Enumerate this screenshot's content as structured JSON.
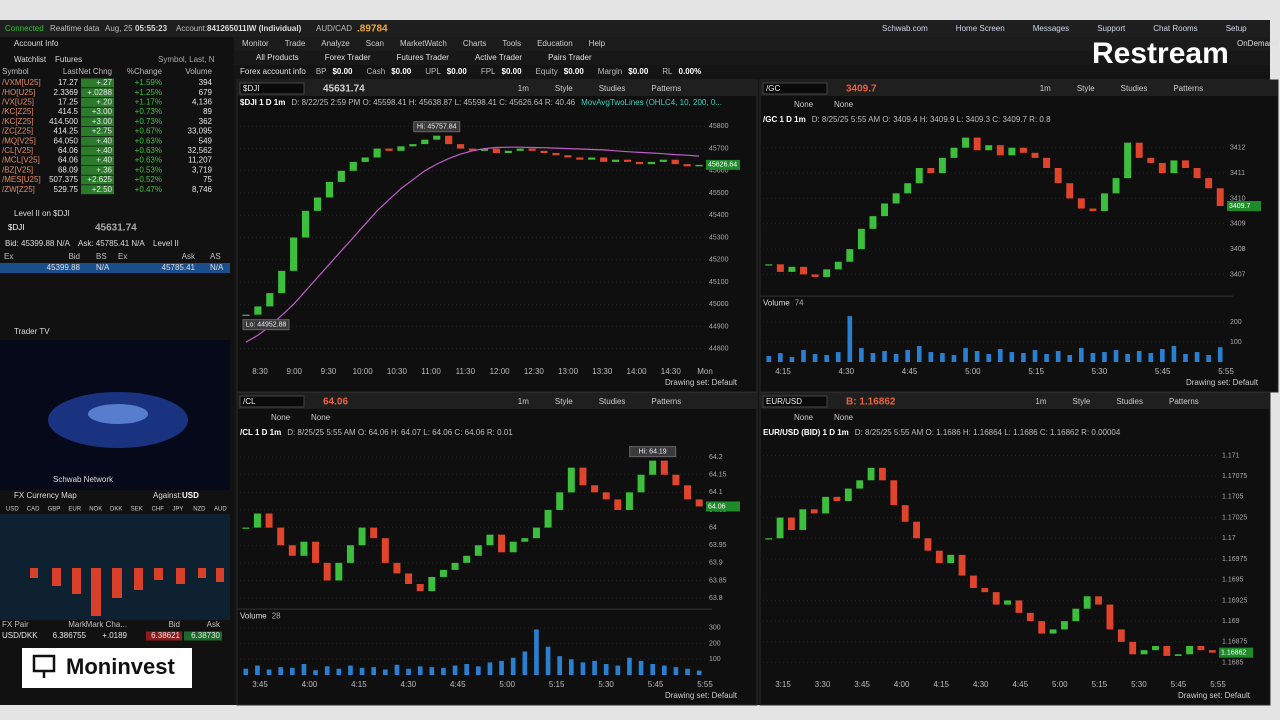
{
  "top_bar": {
    "status": "Connected",
    "data_mode": "Realtime data",
    "date": "Aug, 25",
    "time": "05:55:23",
    "account_label": "Account:",
    "account": "841265011IW (Individual)",
    "symbol": "AUD/CAD",
    "price": ".89784"
  },
  "menu": [
    "Monitor",
    "Trade",
    "Analyze",
    "Scan",
    "MarketWatch",
    "Charts",
    "Tools",
    "Education",
    "Help"
  ],
  "links": [
    "Schwab.com",
    "Home Screen",
    "Messages",
    "Support",
    "Chat Rooms",
    "Setup"
  ],
  "brand": "Restream",
  "on_demand": "OnDemand",
  "tabs": [
    "All Products",
    "Forex Trader",
    "Futures Trader",
    "Active Trader",
    "Pairs Trader"
  ],
  "forex_info": {
    "title": "Forex account info",
    "fields": [
      {
        "label": "BP",
        "value": "$0.00"
      },
      {
        "label": "Cash",
        "value": "$0.00"
      },
      {
        "label": "UPL",
        "value": "$0.00"
      },
      {
        "label": "FPL",
        "value": "$0.00"
      },
      {
        "label": "Equity",
        "value": "$0.00"
      },
      {
        "label": "Margin",
        "value": "$0.00"
      },
      {
        "label": "RL",
        "value": "0.00%"
      }
    ]
  },
  "left_panel": {
    "account_info": "Account Info",
    "watchlist": {
      "title": "Watchlist",
      "list": "Futures",
      "search": "Symbol, Last, N",
      "headers": [
        "Symbol",
        "Last",
        "Net Chng",
        "%Change",
        "Volume"
      ],
      "rows": [
        [
          "/VXM[U25]",
          "17.27",
          "+.27",
          "+1.59%",
          "394"
        ],
        [
          "/HO[U25]",
          "2.3369",
          "+.0288",
          "+1.25%",
          "679"
        ],
        [
          "/VX[U25]",
          "17.25",
          "+.20",
          "+1.17%",
          "4,136"
        ],
        [
          "/KC[Z25]",
          "414.5",
          "+3.00",
          "+0.73%",
          "89"
        ],
        [
          "/KC[Z25]",
          "414.500",
          "+3.00",
          "+0.73%",
          "362"
        ],
        [
          "/ZC[Z25]",
          "414.25",
          "+2.75",
          "+0.67%",
          "33,095"
        ],
        [
          "/MQ[V25]",
          "64.050",
          "+.40",
          "+0.63%",
          "549"
        ],
        [
          "/CL[V25]",
          "64.06",
          "+.40",
          "+0.63%",
          "32,562"
        ],
        [
          "/MCL[V25]",
          "64.06",
          "+.40",
          "+0.63%",
          "11,207"
        ],
        [
          "/BZ[V25]",
          "68.09",
          "+.36",
          "+0.53%",
          "3,719"
        ],
        [
          "/MES[U25]",
          "507.375",
          "+2.625",
          "+0.52%",
          "75"
        ],
        [
          "/ZW[Z25]",
          "529.75",
          "+2.50",
          "+0.47%",
          "8,746"
        ]
      ]
    },
    "level2": {
      "title": "Level II on $DJI",
      "symbol": "$DJI",
      "price": "45631.74",
      "bid": "Bid: 45399.88 N/A",
      "ask": "Ask: 45785.41 N/A",
      "mode": "Level II",
      "headers": [
        "Ex",
        "Bid",
        "BS",
        "Ex",
        "Ask",
        "AS"
      ],
      "row": [
        "45399.88",
        "N/A",
        "45785.41",
        "N/A"
      ]
    },
    "trader_tv": {
      "title": "Trader TV",
      "channel": "Schwab Network"
    },
    "fx_map": {
      "title": "FX Currency Map",
      "against_label": "Against:",
      "against": "USD",
      "codes": [
        "USD",
        "CAD",
        "GBP",
        "EUR",
        "NOK",
        "DKK",
        "SEK",
        "CHF",
        "JPY",
        "NZD",
        "AUD"
      ],
      "headers": [
        "FX Pair",
        "Mark",
        "Mark Cha...",
        "Bid",
        "Ask"
      ],
      "rows": [
        [
          "USD/DKK",
          "6.386755",
          "+.0189",
          "6.38621",
          "6.38730"
        ]
      ]
    }
  },
  "chart_toolbar": {
    "interval": "1m",
    "style": "Style",
    "studies": "Studies",
    "patterns": "Patterns",
    "none": "None",
    "drawing_set": "Drawing set: Default"
  },
  "charts": [
    {
      "type": "line",
      "symbol": "$DJI",
      "price": "45631.74",
      "price_color": "#cfcfcf",
      "link_row": false,
      "title": "$DJI 1 D 1m",
      "info": "D: 8/22/25 2:59 PM  O: 45598.41  H: 45638.87  L: 45598.41  C: 45626.64  R: 40.46",
      "study": "MovAvgTwoLines (OHLC4, 10, 200, 0...",
      "ylim": [
        44740,
        45860
      ],
      "yticks": [
        44800,
        44900,
        45000,
        45100,
        45200,
        45300,
        45400,
        45500,
        45600,
        45700,
        45800
      ],
      "xticks": [
        "8:30",
        "9:00",
        "9:30",
        "10:00",
        "10:30",
        "11:00",
        "11:30",
        "12:00",
        "12:30",
        "13:00",
        "13:30",
        "14:00",
        "14:30",
        "Mon"
      ],
      "series": [
        {
          "style": "candle",
          "values": [
            44952.88,
            44990,
            45050,
            45150,
            45300,
            45420,
            45480,
            45550,
            45600,
            45640,
            45660,
            45700,
            45690,
            45710,
            45720,
            45740,
            45757.84,
            45720,
            45700,
            45690,
            45700,
            45680,
            45690,
            45700,
            45690,
            45680,
            45670,
            45660,
            45650,
            45660,
            45640,
            45650,
            45640,
            45630,
            45640,
            45650,
            45630,
            45620,
            45626.64
          ]
        },
        {
          "style": "line",
          "color": "#c05cc8",
          "values": [
            44830,
            44860,
            44900,
            44950,
            45000,
            45060,
            45120,
            45180,
            45240,
            45300,
            45360,
            45420,
            45470,
            45520,
            45560,
            45600,
            45630,
            45655,
            45675,
            45690,
            45700,
            45705,
            45706,
            45706,
            45705,
            45704,
            45702,
            45700,
            45698,
            45696,
            45694,
            45690,
            45686,
            45683,
            45680,
            45677,
            45673,
            45670,
            45666
          ]
        }
      ],
      "annotations": [
        {
          "label": "Hi: 45757.84",
          "value": 45757.84
        },
        {
          "label": "Lo: 44952.88",
          "value": 44952.88
        }
      ],
      "last": 45626.64
    },
    {
      "type": "line",
      "symbol": "/GC",
      "price": "3409.7",
      "price_color": "#e8603c",
      "link_row": true,
      "title": "/GC 1 D 1m",
      "info": "D: 8/25/25 5:55 AM  O: 3409.4  H: 3409.9  L: 3409.3  C: 3409.7  R: 0.8",
      "ylim": [
        3406.3,
        3412.7
      ],
      "yticks": [
        3407,
        3408,
        3409,
        3410,
        3411,
        3412
      ],
      "xticks": [
        "4:15",
        "4:30",
        "4:45",
        "5:00",
        "5:15",
        "5:30",
        "5:45",
        "5:55"
      ],
      "series": [
        {
          "style": "candle",
          "values": [
            3407.4,
            3407.1,
            3407.3,
            3407.0,
            3406.9,
            3407.2,
            3407.5,
            3408.0,
            3408.8,
            3409.3,
            3409.8,
            3410.2,
            3410.6,
            3411.2,
            3411.0,
            3411.6,
            3412.0,
            3412.4,
            3411.9,
            3412.1,
            3411.7,
            3412.0,
            3411.8,
            3411.6,
            3411.2,
            3410.6,
            3410.0,
            3409.6,
            3409.5,
            3410.2,
            3410.8,
            3412.2,
            3411.6,
            3411.4,
            3411.0,
            3411.5,
            3411.2,
            3410.8,
            3410.4,
            3409.7
          ]
        }
      ],
      "annotations": [],
      "last": 3409.7,
      "volume": {
        "label": "Volume",
        "count": "74",
        "ylim": [
          0,
          260
        ],
        "yticks": [
          100,
          200
        ],
        "values": [
          30,
          45,
          25,
          60,
          40,
          35,
          50,
          230,
          70,
          45,
          55,
          40,
          60,
          80,
          50,
          45,
          35,
          70,
          55,
          40,
          65,
          50,
          45,
          60,
          40,
          55,
          35,
          70,
          45,
          50,
          60,
          40,
          55,
          45,
          65,
          80,
          40,
          50,
          35,
          74
        ]
      }
    },
    {
      "type": "line",
      "symbol": "/CL",
      "price": "64.06",
      "price_color": "#e8603c",
      "link_row": true,
      "title": "/CL 1 D 1m",
      "info": "D: 8/25/25 5:55 AM  O: 64.06  H: 64.07  L: 64.06  C: 64.06  R: 0.01",
      "ylim": [
        63.78,
        64.24
      ],
      "yticks": [
        63.8,
        63.85,
        63.9,
        63.95,
        64,
        64.05,
        64.1,
        64.15,
        64.2
      ],
      "xticks": [
        "3:45",
        "4:00",
        "4:15",
        "4:30",
        "4:45",
        "5:00",
        "5:15",
        "5:30",
        "5:45",
        "5:55"
      ],
      "series": [
        {
          "style": "candle",
          "values": [
            64.0,
            64.04,
            64.0,
            63.95,
            63.92,
            63.96,
            63.9,
            63.85,
            63.9,
            63.95,
            64.0,
            63.97,
            63.9,
            63.87,
            63.84,
            63.82,
            63.86,
            63.88,
            63.9,
            63.92,
            63.95,
            63.98,
            63.93,
            63.96,
            63.97,
            64.0,
            64.05,
            64.1,
            64.17,
            64.12,
            64.1,
            64.08,
            64.05,
            64.1,
            64.15,
            64.19,
            64.15,
            64.12,
            64.08,
            64.06
          ]
        }
      ],
      "annotations": [
        {
          "label": "Hi: 64.19",
          "value": 64.19
        }
      ],
      "last": 64.06,
      "volume": {
        "label": "Volume",
        "count": "28",
        "ylim": [
          0,
          330
        ],
        "yticks": [
          100,
          200,
          300
        ],
        "values": [
          40,
          60,
          35,
          50,
          45,
          70,
          30,
          55,
          40,
          60,
          45,
          50,
          35,
          65,
          40,
          55,
          50,
          45,
          60,
          70,
          55,
          80,
          90,
          110,
          150,
          290,
          180,
          120,
          100,
          80,
          90,
          70,
          60,
          110,
          90,
          70,
          60,
          50,
          40,
          28
        ]
      }
    },
    {
      "type": "line",
      "symbol": "EUR/USD",
      "price": "B: 1.16862",
      "price_color": "#e8603c",
      "link_row": true,
      "title": "EUR/USD (BID) 1 D 1m",
      "info": "D: 8/25/25 5:55 AM  O: 1.1686  H: 1.16864  L: 1.1686  C: 1.16862  R: 0.00004",
      "ylim": [
        1.16835,
        1.17115
      ],
      "yticks": [
        1.1685,
        1.16875,
        1.169,
        1.16925,
        1.1695,
        1.16975,
        1.17,
        1.17025,
        1.1705,
        1.17075,
        1.171
      ],
      "xticks": [
        "3:15",
        "3:30",
        "3:45",
        "4:00",
        "4:15",
        "4:30",
        "4:45",
        "5:00",
        "5:15",
        "5:30",
        "5:45",
        "5:55"
      ],
      "series": [
        {
          "style": "candle",
          "values": [
            1.17,
            1.17025,
            1.1701,
            1.17035,
            1.1703,
            1.1705,
            1.17045,
            1.1706,
            1.1707,
            1.17085,
            1.1707,
            1.1704,
            1.1702,
            1.17,
            1.16985,
            1.1697,
            1.1698,
            1.16955,
            1.1694,
            1.16935,
            1.1692,
            1.16925,
            1.1691,
            1.169,
            1.16885,
            1.1689,
            1.169,
            1.16915,
            1.1693,
            1.1692,
            1.1689,
            1.16875,
            1.1686,
            1.16865,
            1.1687,
            1.16858,
            1.1686,
            1.1687,
            1.16865,
            1.16862
          ]
        }
      ],
      "annotations": [],
      "last": 1.16862
    }
  ],
  "logo": "Moninvest"
}
